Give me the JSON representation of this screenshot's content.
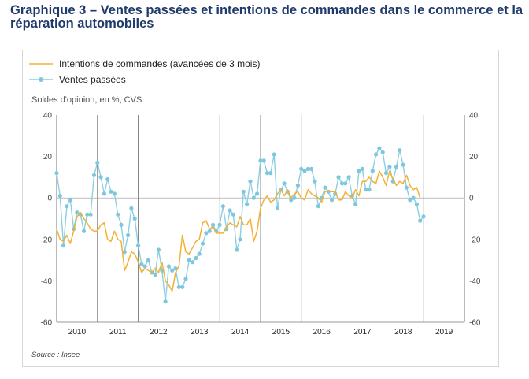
{
  "title": "Graphique 3 – Ventes passées et intentions de commandes dans le commerce et la réparation automobiles",
  "source": "Source : Insee",
  "chart_data": {
    "type": "line",
    "ylabel": "Soldes d'opinion, en %, CVS",
    "ylim": [
      -60,
      40
    ],
    "yticks": [
      40,
      20,
      0,
      -20,
      -40,
      -60
    ],
    "x_years": [
      "2010",
      "2011",
      "2012",
      "2013",
      "2014",
      "2015",
      "2016",
      "2017",
      "2018",
      "2019"
    ],
    "x_start": 2010.0,
    "x_end": 2020.0,
    "grid": "vertical year separators",
    "legend_position": "top-left",
    "colors": {
      "intentions": "#f2b134",
      "ventes": "#8ccfe2",
      "marker": "#7ec8de",
      "grid": "#555555"
    },
    "series": [
      {
        "name": "Intentions de commandes (avancées de 3 mois)",
        "style": "line",
        "start": 2010.0,
        "step": 0.0833,
        "values": [
          -15,
          -20,
          -21,
          -18,
          -22,
          -16,
          -9,
          -7,
          -10,
          -12,
          -15,
          -16,
          -16,
          -13,
          -12,
          -20,
          -21,
          -16,
          -20,
          -21,
          -35,
          -31,
          -26,
          -27,
          -31,
          -36,
          -34,
          -35,
          -36,
          -34,
          -36,
          -31,
          -40,
          -42,
          -45,
          -36,
          -33,
          -18,
          -26,
          -27,
          -24,
          -21,
          -20,
          -12,
          -11,
          -15,
          -14,
          -17,
          -17,
          -17,
          -14,
          -12,
          -13,
          -14,
          -9,
          -13,
          -13,
          -10,
          -21,
          -16,
          -5,
          -1,
          1,
          -2,
          -1,
          2,
          4,
          1,
          4,
          0,
          2,
          3,
          0,
          -1,
          4,
          2,
          1,
          0,
          -2,
          3,
          3,
          3,
          3,
          -1,
          -1,
          3,
          1,
          0,
          4,
          1,
          8,
          8,
          10,
          8,
          7,
          13,
          10,
          6,
          13,
          9,
          6,
          8,
          7,
          11,
          6,
          4,
          5,
          0
        ]
      },
      {
        "name": "Ventes passées",
        "style": "line+markers",
        "start": 2010.0,
        "step": 0.0833,
        "values": [
          12,
          1,
          -23,
          -4,
          -1,
          -15,
          -7,
          -8,
          -16,
          -8,
          -8,
          11,
          17,
          10,
          2,
          9,
          3,
          2,
          -8,
          -13,
          -26,
          -18,
          -5,
          -10,
          -23,
          -32,
          -33,
          -30,
          -36,
          -37,
          -25,
          -35,
          -50,
          -33,
          -35,
          -34,
          -43,
          -43,
          -39,
          -30,
          -31,
          -29,
          -27,
          -22,
          -17,
          -16,
          -13,
          -16,
          -13,
          -4,
          -15,
          -6,
          -8,
          -25,
          -20,
          3,
          -3,
          8,
          0,
          2,
          18,
          18,
          12,
          12,
          21,
          -5,
          4,
          7,
          3,
          -1,
          0,
          6,
          14,
          13,
          14,
          14,
          8,
          -4,
          0,
          5,
          3,
          -1,
          2,
          10,
          7,
          7,
          10,
          1,
          -3,
          13,
          14,
          4,
          4,
          13,
          21,
          24,
          22,
          12,
          15,
          8,
          15,
          23,
          16,
          5,
          -1,
          0,
          -3,
          -11,
          -9
        ]
      }
    ]
  }
}
